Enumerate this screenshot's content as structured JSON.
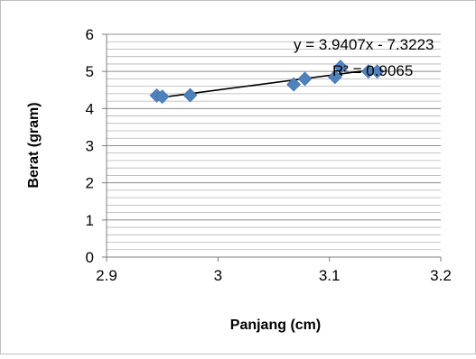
{
  "chart_data": {
    "type": "scatter",
    "title": "",
    "xlabel": "Panjang (cm)",
    "ylabel": "Berat (gram)",
    "xlim": [
      2.9,
      3.2
    ],
    "ylim": [
      0,
      6
    ],
    "x_ticks": [
      2.9,
      3.0,
      3.1,
      3.2
    ],
    "x_tick_labels": [
      "2.9",
      "3",
      "3.1",
      "3.2"
    ],
    "y_ticks": [
      0,
      1,
      2,
      3,
      4,
      5,
      6
    ],
    "y_tick_labels": [
      "0",
      "1",
      "2",
      "3",
      "4",
      "5",
      "6"
    ],
    "grid": "horizontal",
    "legend": "none",
    "series": [
      {
        "color": "#4F81BD",
        "marker": "diamond",
        "points": [
          {
            "x": 2.945,
            "y": 4.35
          },
          {
            "x": 2.95,
            "y": 4.32
          },
          {
            "x": 2.975,
            "y": 4.36
          },
          {
            "x": 3.068,
            "y": 4.65
          },
          {
            "x": 3.078,
            "y": 4.8
          },
          {
            "x": 3.105,
            "y": 4.85
          },
          {
            "x": 3.11,
            "y": 5.12
          },
          {
            "x": 3.135,
            "y": 5.0
          },
          {
            "x": 3.143,
            "y": 5.0
          }
        ]
      }
    ],
    "trendline": {
      "type": "linear",
      "slope": 3.9407,
      "intercept": -7.3223,
      "x_range": [
        2.945,
        3.143
      ],
      "color": "#000000",
      "equation_label": "y = 3.9407x - 7.3223",
      "r2_label": "R² = 0.9065"
    }
  }
}
